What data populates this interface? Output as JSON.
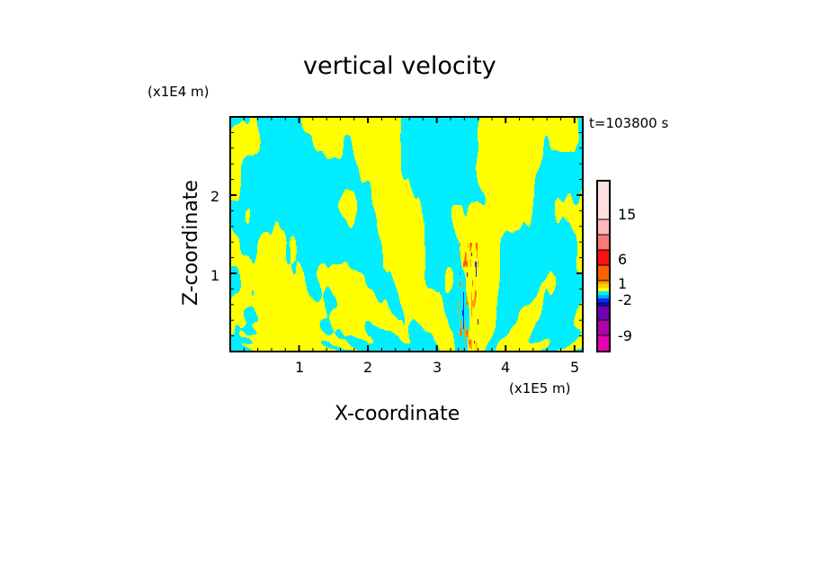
{
  "chart_data": {
    "type": "heatmap",
    "title": "vertical velocity",
    "xlabel": "X-coordinate",
    "ylabel": "Z-coordinate",
    "x_unit": "(x1E5 m)",
    "y_unit": "(x1E4 m)",
    "time_label": "t=103800 s",
    "xlim": [
      0,
      5.12
    ],
    "ylim": [
      0,
      3
    ],
    "xticks": [
      "1",
      "2",
      "3",
      "4",
      "5"
    ],
    "yticks": [
      "1",
      "2"
    ],
    "grid": false,
    "colorbar": {
      "position": "right",
      "colors_bottom_to_top": [
        "#e800b0",
        "#b000a8",
        "#7000b0",
        "#0010a0",
        "#0030f0",
        "#00a8ff",
        "#00eeff",
        "#ffff00",
        "#ffd000",
        "#ffa000",
        "#ff6000",
        "#ff1010",
        "#ff7878",
        "#ffb8b8",
        "#ffe0e0"
      ],
      "labels": [
        "-9",
        "-2",
        "1",
        "6",
        "15"
      ]
    },
    "field_description_colors": {
      "dominant_negative": "#00eeff",
      "dominant_positive": "#ffff00"
    }
  }
}
